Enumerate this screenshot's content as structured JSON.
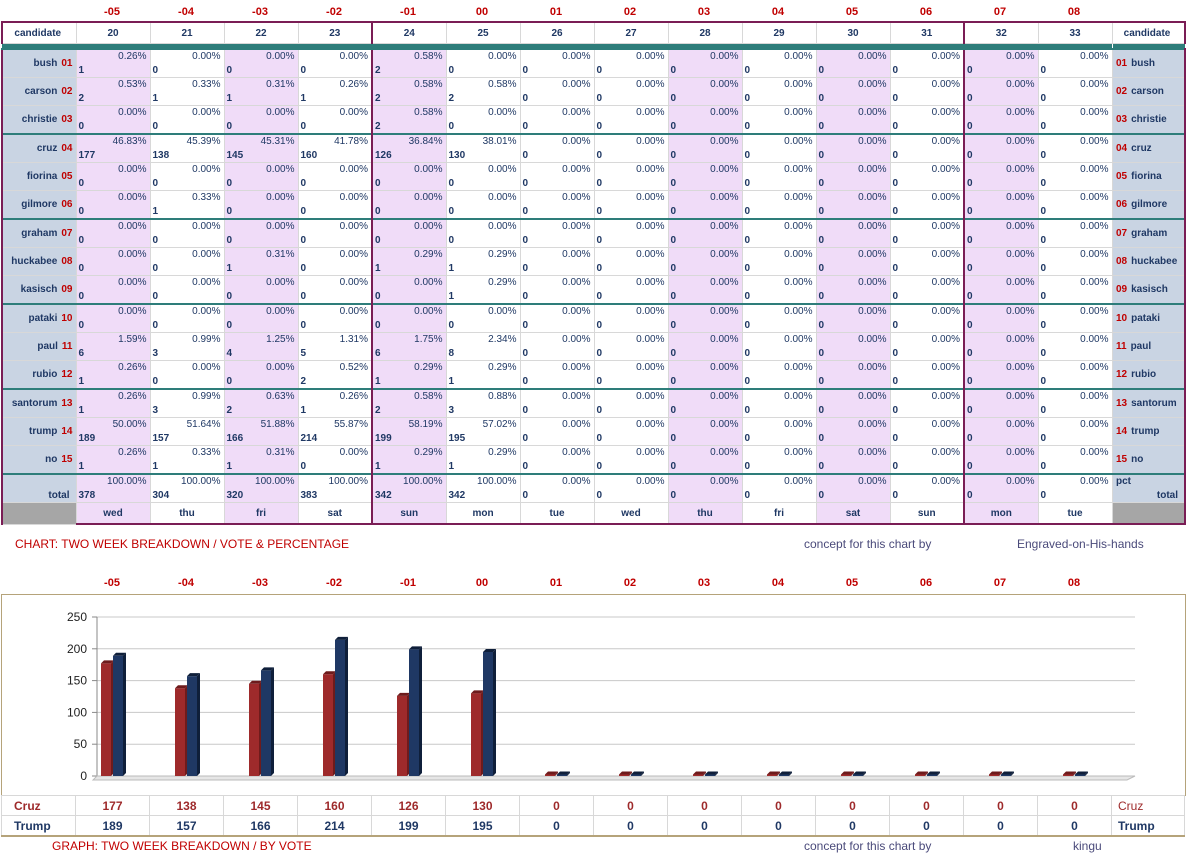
{
  "offsets": [
    "-05",
    "-04",
    "-03",
    "-02",
    "-01",
    "00",
    "01",
    "02",
    "03",
    "04",
    "05",
    "06",
    "07",
    "08"
  ],
  "days": [
    "20",
    "21",
    "22",
    "23",
    "24",
    "25",
    "26",
    "27",
    "28",
    "29",
    "30",
    "31",
    "32",
    "33"
  ],
  "weekdays": [
    "wed",
    "thu",
    "fri",
    "sat",
    "sun",
    "mon",
    "tue",
    "wed",
    "thu",
    "fri",
    "sat",
    "sun",
    "mon",
    "tue"
  ],
  "header_label": "candidate",
  "candidates": [
    {
      "name": "bush",
      "num": "01",
      "counts": [
        "1",
        "0",
        "0",
        "0",
        "2",
        "0",
        "0",
        "0",
        "0",
        "0",
        "0",
        "0",
        "0",
        "0"
      ],
      "pcts": [
        "0.26%",
        "0.00%",
        "0.00%",
        "0.00%",
        "0.58%",
        "0.00%",
        "0.00%",
        "0.00%",
        "0.00%",
        "0.00%",
        "0.00%",
        "0.00%",
        "0.00%",
        "0.00%"
      ]
    },
    {
      "name": "carson",
      "num": "02",
      "counts": [
        "2",
        "1",
        "1",
        "1",
        "2",
        "2",
        "0",
        "0",
        "0",
        "0",
        "0",
        "0",
        "0",
        "0"
      ],
      "pcts": [
        "0.53%",
        "0.33%",
        "0.31%",
        "0.26%",
        "0.58%",
        "0.58%",
        "0.00%",
        "0.00%",
        "0.00%",
        "0.00%",
        "0.00%",
        "0.00%",
        "0.00%",
        "0.00%"
      ]
    },
    {
      "name": "christie",
      "num": "03",
      "counts": [
        "0",
        "0",
        "0",
        "0",
        "2",
        "0",
        "0",
        "0",
        "0",
        "0",
        "0",
        "0",
        "0",
        "0"
      ],
      "pcts": [
        "0.00%",
        "0.00%",
        "0.00%",
        "0.00%",
        "0.58%",
        "0.00%",
        "0.00%",
        "0.00%",
        "0.00%",
        "0.00%",
        "0.00%",
        "0.00%",
        "0.00%",
        "0.00%"
      ]
    },
    {
      "name": "cruz",
      "num": "04",
      "counts": [
        "177",
        "138",
        "145",
        "160",
        "126",
        "130",
        "0",
        "0",
        "0",
        "0",
        "0",
        "0",
        "0",
        "0"
      ],
      "pcts": [
        "46.83%",
        "45.39%",
        "45.31%",
        "41.78%",
        "36.84%",
        "38.01%",
        "0.00%",
        "0.00%",
        "0.00%",
        "0.00%",
        "0.00%",
        "0.00%",
        "0.00%",
        "0.00%"
      ]
    },
    {
      "name": "fiorina",
      "num": "05",
      "counts": [
        "0",
        "0",
        "0",
        "0",
        "0",
        "0",
        "0",
        "0",
        "0",
        "0",
        "0",
        "0",
        "0",
        "0"
      ],
      "pcts": [
        "0.00%",
        "0.00%",
        "0.00%",
        "0.00%",
        "0.00%",
        "0.00%",
        "0.00%",
        "0.00%",
        "0.00%",
        "0.00%",
        "0.00%",
        "0.00%",
        "0.00%",
        "0.00%"
      ]
    },
    {
      "name": "gilmore",
      "num": "06",
      "counts": [
        "0",
        "1",
        "0",
        "0",
        "0",
        "0",
        "0",
        "0",
        "0",
        "0",
        "0",
        "0",
        "0",
        "0"
      ],
      "pcts": [
        "0.00%",
        "0.33%",
        "0.00%",
        "0.00%",
        "0.00%",
        "0.00%",
        "0.00%",
        "0.00%",
        "0.00%",
        "0.00%",
        "0.00%",
        "0.00%",
        "0.00%",
        "0.00%"
      ]
    },
    {
      "name": "graham",
      "num": "07",
      "counts": [
        "0",
        "0",
        "0",
        "0",
        "0",
        "0",
        "0",
        "0",
        "0",
        "0",
        "0",
        "0",
        "0",
        "0"
      ],
      "pcts": [
        "0.00%",
        "0.00%",
        "0.00%",
        "0.00%",
        "0.00%",
        "0.00%",
        "0.00%",
        "0.00%",
        "0.00%",
        "0.00%",
        "0.00%",
        "0.00%",
        "0.00%",
        "0.00%"
      ]
    },
    {
      "name": "huckabee",
      "num": "08",
      "counts": [
        "0",
        "0",
        "1",
        "0",
        "1",
        "1",
        "0",
        "0",
        "0",
        "0",
        "0",
        "0",
        "0",
        "0"
      ],
      "pcts": [
        "0.00%",
        "0.00%",
        "0.31%",
        "0.00%",
        "0.29%",
        "0.29%",
        "0.00%",
        "0.00%",
        "0.00%",
        "0.00%",
        "0.00%",
        "0.00%",
        "0.00%",
        "0.00%"
      ]
    },
    {
      "name": "kasisch",
      "num": "09",
      "counts": [
        "0",
        "0",
        "0",
        "0",
        "0",
        "1",
        "0",
        "0",
        "0",
        "0",
        "0",
        "0",
        "0",
        "0"
      ],
      "pcts": [
        "0.00%",
        "0.00%",
        "0.00%",
        "0.00%",
        "0.00%",
        "0.29%",
        "0.00%",
        "0.00%",
        "0.00%",
        "0.00%",
        "0.00%",
        "0.00%",
        "0.00%",
        "0.00%"
      ]
    },
    {
      "name": "pataki",
      "num": "10",
      "counts": [
        "0",
        "0",
        "0",
        "0",
        "0",
        "0",
        "0",
        "0",
        "0",
        "0",
        "0",
        "0",
        "0",
        "0"
      ],
      "pcts": [
        "0.00%",
        "0.00%",
        "0.00%",
        "0.00%",
        "0.00%",
        "0.00%",
        "0.00%",
        "0.00%",
        "0.00%",
        "0.00%",
        "0.00%",
        "0.00%",
        "0.00%",
        "0.00%"
      ]
    },
    {
      "name": "paul",
      "num": "11",
      "counts": [
        "6",
        "3",
        "4",
        "5",
        "6",
        "8",
        "0",
        "0",
        "0",
        "0",
        "0",
        "0",
        "0",
        "0"
      ],
      "pcts": [
        "1.59%",
        "0.99%",
        "1.25%",
        "1.31%",
        "1.75%",
        "2.34%",
        "0.00%",
        "0.00%",
        "0.00%",
        "0.00%",
        "0.00%",
        "0.00%",
        "0.00%",
        "0.00%"
      ]
    },
    {
      "name": "rubio",
      "num": "12",
      "counts": [
        "1",
        "0",
        "0",
        "2",
        "1",
        "1",
        "0",
        "0",
        "0",
        "0",
        "0",
        "0",
        "0",
        "0"
      ],
      "pcts": [
        "0.26%",
        "0.00%",
        "0.00%",
        "0.52%",
        "0.29%",
        "0.29%",
        "0.00%",
        "0.00%",
        "0.00%",
        "0.00%",
        "0.00%",
        "0.00%",
        "0.00%",
        "0.00%"
      ]
    },
    {
      "name": "santorum",
      "num": "13",
      "counts": [
        "1",
        "3",
        "2",
        "1",
        "2",
        "3",
        "0",
        "0",
        "0",
        "0",
        "0",
        "0",
        "0",
        "0"
      ],
      "pcts": [
        "0.26%",
        "0.99%",
        "0.63%",
        "0.26%",
        "0.58%",
        "0.88%",
        "0.00%",
        "0.00%",
        "0.00%",
        "0.00%",
        "0.00%",
        "0.00%",
        "0.00%",
        "0.00%"
      ]
    },
    {
      "name": "trump",
      "num": "14",
      "counts": [
        "189",
        "157",
        "166",
        "214",
        "199",
        "195",
        "0",
        "0",
        "0",
        "0",
        "0",
        "0",
        "0",
        "0"
      ],
      "pcts": [
        "50.00%",
        "51.64%",
        "51.88%",
        "55.87%",
        "58.19%",
        "57.02%",
        "0.00%",
        "0.00%",
        "0.00%",
        "0.00%",
        "0.00%",
        "0.00%",
        "0.00%",
        "0.00%"
      ]
    },
    {
      "name": "no",
      "num": "15",
      "counts": [
        "1",
        "1",
        "1",
        "0",
        "1",
        "1",
        "0",
        "0",
        "0",
        "0",
        "0",
        "0",
        "0",
        "0"
      ],
      "pcts": [
        "0.26%",
        "0.33%",
        "0.31%",
        "0.00%",
        "0.29%",
        "0.29%",
        "0.00%",
        "0.00%",
        "0.00%",
        "0.00%",
        "0.00%",
        "0.00%",
        "0.00%",
        "0.00%"
      ]
    }
  ],
  "total": {
    "label": "total",
    "pct_label": "pct",
    "counts": [
      "378",
      "304",
      "320",
      "383",
      "342",
      "342",
      "0",
      "0",
      "0",
      "0",
      "0",
      "0",
      "0",
      "0"
    ],
    "pcts": [
      "100.00%",
      "100.00%",
      "100.00%",
      "100.00%",
      "100.00%",
      "100.00%",
      "0.00%",
      "0.00%",
      "0.00%",
      "0.00%",
      "0.00%",
      "0.00%",
      "0.00%",
      "0.00%"
    ]
  },
  "captions": {
    "chart_title": "CHART: TWO WEEK BREAKDOWN / VOTE & PERCENTAGE",
    "chart_concept": "concept for this chart by",
    "chart_author": "Engraved-on-His-hands",
    "graph_title": "GRAPH: TWO WEEK BREAKDOWN / BY VOTE",
    "graph_concept": "concept for this chart by",
    "graph_author": "kingu"
  },
  "colors": {
    "cruz": "#9e2a2b",
    "trump": "#1f3864",
    "pink": "#f0dcf8",
    "header_blue": "#c9d4e3",
    "border": "#7a1d55"
  },
  "chart_data": {
    "type": "bar",
    "categories": [
      "-05",
      "-04",
      "-03",
      "-02",
      "-01",
      "00",
      "01",
      "02",
      "03",
      "04",
      "05",
      "06",
      "07",
      "08"
    ],
    "series": [
      {
        "name": "Cruz",
        "values": [
          177,
          138,
          145,
          160,
          126,
          130,
          0,
          0,
          0,
          0,
          0,
          0,
          0,
          0
        ]
      },
      {
        "name": "Trump",
        "values": [
          189,
          157,
          166,
          214,
          199,
          195,
          0,
          0,
          0,
          0,
          0,
          0,
          0,
          0
        ]
      }
    ],
    "yticks": [
      "0",
      "50",
      "100",
      "150",
      "200",
      "250"
    ],
    "ylim": [
      0,
      250
    ],
    "grid": true
  }
}
